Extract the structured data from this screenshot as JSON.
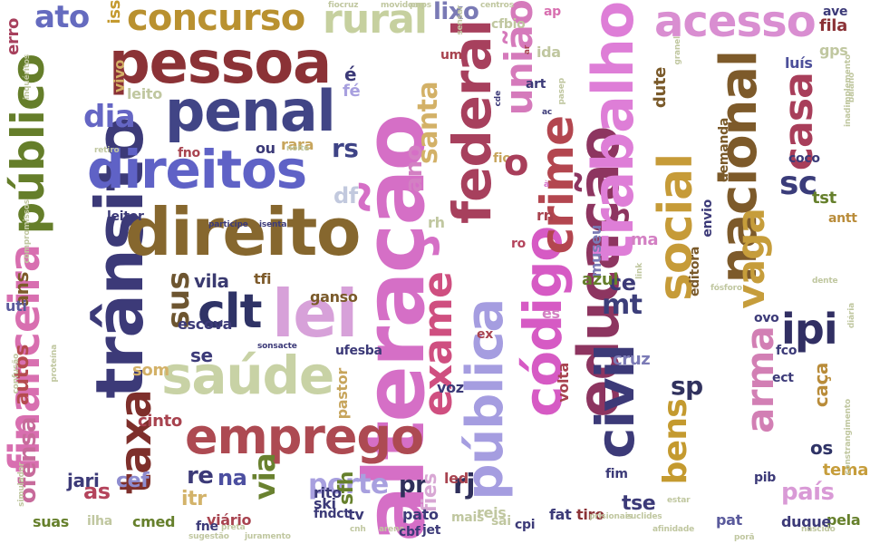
{
  "cloud": {
    "words": [
      {
        "text": "alteração",
        "color": "#d56fc6"
      },
      {
        "text": "trânsito",
        "color": "#3c3a78"
      },
      {
        "text": "direito",
        "color": "#86672e"
      },
      {
        "text": "pessoa",
        "color": "#8b3236"
      },
      {
        "text": "penal",
        "color": "#414586"
      },
      {
        "text": "direitos",
        "color": "#5f62c6"
      },
      {
        "text": "público",
        "color": "#657e2a"
      },
      {
        "text": "federal",
        "color": "#a7405d"
      },
      {
        "text": "financeira",
        "color": "#d86fb0"
      },
      {
        "text": "emprego",
        "color": "#ad4a52"
      },
      {
        "text": "saúde",
        "color": "#c8d2a5"
      },
      {
        "text": "lei",
        "color": "#d7a1d9"
      },
      {
        "text": "concurso",
        "color": "#b99130"
      },
      {
        "text": "acesso",
        "color": "#d98ed1"
      },
      {
        "text": "educação",
        "color": "#8d3560"
      },
      {
        "text": "trabalho",
        "color": "#de7ed7"
      },
      {
        "text": "código",
        "color": "#d65ac4"
      },
      {
        "text": "pública",
        "color": "#a59de0"
      },
      {
        "text": "social",
        "color": "#c69b38"
      },
      {
        "text": "nacional",
        "color": "#7d5a2a"
      },
      {
        "text": "civil",
        "color": "#3c3a78"
      },
      {
        "text": "crime",
        "color": "#b3464f"
      },
      {
        "text": "exame",
        "color": "#cf4f80"
      },
      {
        "text": "rural",
        "color": "#c6d09f"
      },
      {
        "text": "união",
        "color": "#d57abb"
      },
      {
        "text": "taxa",
        "color": "#7e2f2b"
      },
      {
        "text": "clt",
        "color": "#2f3366"
      },
      {
        "text": "ipi",
        "color": "#312f63"
      },
      {
        "text": "vaga",
        "color": "#c69d3b"
      },
      {
        "text": "casa",
        "color": "#a83e5a"
      },
      {
        "text": "arma",
        "color": "#d27fb4"
      },
      {
        "text": "bens",
        "color": "#c49a2f"
      },
      {
        "text": "sp",
        "color": "#31325e"
      },
      {
        "text": "sc",
        "color": "#3a3c7a"
      },
      {
        "text": "dia",
        "color": "#6566c4"
      },
      {
        "text": "ato",
        "color": "#656bbf"
      },
      {
        "text": "sus",
        "color": "#6d5530"
      },
      {
        "text": "porte",
        "color": "#a8a0df"
      },
      {
        "text": "via",
        "color": "#69812f"
      },
      {
        "text": "país",
        "color": "#d99ad6"
      },
      {
        "text": "rs",
        "color": "#3e4386"
      },
      {
        "text": "df",
        "color": "#c2c9de"
      },
      {
        "text": "mt",
        "color": "#3c3e7a"
      },
      {
        "text": "santa",
        "color": "#d3b167"
      },
      {
        "text": "ano",
        "color": "#d380c3"
      },
      {
        "text": "lixo",
        "color": "#7a7ab5"
      },
      {
        "text": "vila",
        "color": "#3a3a70"
      },
      {
        "text": "cef",
        "color": "#8e8ccf"
      },
      {
        "text": "ofensa",
        "color": "#c76b9b"
      },
      {
        "text": "autos",
        "color": "#b54b4f"
      },
      {
        "text": "ans",
        "color": "#7d5a2a"
      },
      {
        "text": "as",
        "color": "#b4445c"
      },
      {
        "text": "itr",
        "color": "#d3b36a"
      },
      {
        "text": "na",
        "color": "#4c4fa0"
      },
      {
        "text": "rj",
        "color": "#2f2f5b"
      },
      {
        "text": "pr",
        "color": "#2f2f5b"
      },
      {
        "text": "sfh",
        "color": "#66802c"
      },
      {
        "text": "fies",
        "color": "#d8a7d4"
      },
      {
        "text": "tse",
        "color": "#3c3a78"
      },
      {
        "text": "os",
        "color": "#2f3366"
      },
      {
        "text": "caça",
        "color": "#b98c3a"
      },
      {
        "text": "cruz",
        "color": "#7b7ab6"
      },
      {
        "text": "tema",
        "color": "#c69d3b"
      },
      {
        "text": "pela",
        "color": "#66802c"
      },
      {
        "text": "duque",
        "color": "#3c3a78"
      },
      {
        "text": "pat",
        "color": "#5a5a9c"
      },
      {
        "text": "tiro",
        "color": "#8b3236"
      },
      {
        "text": "fat",
        "color": "#3c3a78"
      },
      {
        "text": "museu",
        "color": "#7a7ab5"
      },
      {
        "text": "ce",
        "color": "#3c3a78"
      },
      {
        "text": "azul",
        "color": "#66802c"
      },
      {
        "text": "escova",
        "color": "#3c3a78"
      },
      {
        "text": "som",
        "color": "#d3b167"
      },
      {
        "text": "cinto",
        "color": "#a8434f"
      },
      {
        "text": "pastor",
        "color": "#c7a55c"
      },
      {
        "text": "ganso",
        "color": "#7a5a2a"
      },
      {
        "text": "leitor",
        "color": "#3c3a78"
      },
      {
        "text": "leito",
        "color": "#c0c7a0"
      },
      {
        "text": "vivo",
        "color": "#d3b167"
      },
      {
        "text": "iss",
        "color": "#c49a2f"
      },
      {
        "text": "erro",
        "color": "#a7405d"
      },
      {
        "text": "fila",
        "color": "#8b3236"
      },
      {
        "text": "gps",
        "color": "#c0c7a0"
      },
      {
        "text": "luís",
        "color": "#4c4f9a"
      },
      {
        "text": "ave",
        "color": "#3c3a78"
      },
      {
        "text": "tst",
        "color": "#66802c"
      },
      {
        "text": "antt",
        "color": "#b98c3a"
      },
      {
        "text": "coco",
        "color": "#3c3a78"
      },
      {
        "text": "dute",
        "color": "#7a5a2a"
      },
      {
        "text": "fco",
        "color": "#3c3a78"
      },
      {
        "text": "ect",
        "color": "#3c3a78"
      },
      {
        "text": "pib",
        "color": "#3c3a78"
      },
      {
        "text": "ovo",
        "color": "#3c3a78"
      },
      {
        "text": "rara",
        "color": "#c7a55c"
      },
      {
        "text": "ou",
        "color": "#3c3a78"
      },
      {
        "text": "fno",
        "color": "#a8434f"
      },
      {
        "text": "tfi",
        "color": "#7d5a2a"
      },
      {
        "text": "suas",
        "color": "#66802c"
      },
      {
        "text": "ilha",
        "color": "#c0c7a0"
      },
      {
        "text": "viário",
        "color": "#a8434f"
      },
      {
        "text": "fiocruz",
        "color": "#c0c7a0"
      },
      {
        "text": "movidos",
        "color": "#c0c7a0"
      },
      {
        "text": "pnps",
        "color": "#c0c7a0"
      },
      {
        "text": "centros",
        "color": "#c0c7a0"
      },
      {
        "text": "sensar",
        "color": "#c0c7a0"
      },
      {
        "text": "participe",
        "color": "#3c3a78"
      },
      {
        "text": "isenta",
        "color": "#3c3a78"
      },
      {
        "text": "inquéritos",
        "color": "#c0c7a0"
      },
      {
        "text": "confusão",
        "color": "#c0c7a0"
      },
      {
        "text": "compromissos",
        "color": "#c0c7a0"
      },
      {
        "text": "simulador",
        "color": "#c0c7a0"
      },
      {
        "text": "afinidade",
        "color": "#c0c7a0"
      },
      {
        "text": "nascido",
        "color": "#c0c7a0"
      },
      {
        "text": "euclides",
        "color": "#c0c7a0"
      },
      {
        "text": "prisionais",
        "color": "#c0c7a0"
      },
      {
        "text": "juramento",
        "color": "#c0c7a0"
      },
      {
        "text": "sugestão",
        "color": "#c0c7a0"
      },
      {
        "text": "proteína",
        "color": "#c0c7a0"
      },
      {
        "text": "inadimplemento",
        "color": "#c0c7a0"
      },
      {
        "text": "constrangimento",
        "color": "#c0c7a0"
      },
      {
        "text": "granel",
        "color": "#c0c7a0"
      },
      {
        "text": "baiano",
        "color": "#c0c7a0"
      },
      {
        "text": "retiro",
        "color": "#c0c7a0"
      },
      {
        "text": "noite",
        "color": "#c0c7a0"
      },
      {
        "text": "demanda",
        "color": "#7a5a2a"
      },
      {
        "text": "envio",
        "color": "#3c3a78"
      },
      {
        "text": "editora",
        "color": "#7a5a2a"
      },
      {
        "text": "pasep",
        "color": "#c0c7a0"
      },
      {
        "text": "link",
        "color": "#c0c7a0"
      },
      {
        "text": "estar",
        "color": "#c0c7a0"
      },
      {
        "text": "porã",
        "color": "#c0c7a0"
      },
      {
        "text": "dente",
        "color": "#c0c7a0"
      },
      {
        "text": "diária",
        "color": "#c0c7a0"
      },
      {
        "text": "fósforo",
        "color": "#c0c7a0"
      },
      {
        "text": "volta",
        "color": "#a8434f"
      },
      {
        "text": "cnh",
        "color": "#c0c7a0"
      },
      {
        "text": "arena",
        "color": "#c0c7a0"
      },
      {
        "text": "fndct",
        "color": "#3c3a78"
      },
      {
        "text": "preta",
        "color": "#c0c7a0"
      },
      {
        "text": "fne",
        "color": "#3c3a78"
      },
      {
        "text": "cmed",
        "color": "#66802c"
      },
      {
        "text": "jari",
        "color": "#3c3a78"
      },
      {
        "text": "uti",
        "color": "#5a5a9c"
      },
      {
        "text": "rito",
        "color": "#3c3a78"
      },
      {
        "text": "led",
        "color": "#a8434f"
      },
      {
        "text": "tv",
        "color": "#3c3a78"
      },
      {
        "text": "ski",
        "color": "#3c3a78"
      },
      {
        "text": "pato",
        "color": "#3c3a78"
      },
      {
        "text": "cbf",
        "color": "#3c3a78"
      },
      {
        "text": "jet",
        "color": "#3c3a78"
      },
      {
        "text": "reis",
        "color": "#c0c7a0"
      },
      {
        "text": "cpi",
        "color": "#3c3a78"
      },
      {
        "text": "sai",
        "color": "#c0c7a0"
      },
      {
        "text": "mais",
        "color": "#c0c7a0"
      },
      {
        "text": "ufesba",
        "color": "#3c3a78"
      },
      {
        "text": "sonsacte",
        "color": "#3c3a78"
      },
      {
        "text": "ex",
        "color": "#a8434f"
      },
      {
        "text": "fim",
        "color": "#3c3a78"
      },
      {
        "text": "voz",
        "color": "#3c3a78"
      },
      {
        "text": "cfbio",
        "color": "#c0c7a0"
      },
      {
        "text": "cde",
        "color": "#3c3a78"
      },
      {
        "text": "ac",
        "color": "#3c3a78"
      },
      {
        "text": "art",
        "color": "#3c3a78"
      },
      {
        "text": "um",
        "color": "#a8434f"
      },
      {
        "text": "ap",
        "color": "#d86fb0"
      },
      {
        "text": "ida",
        "color": "#c0c7a0"
      },
      {
        "text": "ar",
        "color": "#a8434f"
      },
      {
        "text": "fé",
        "color": "#a8a0df"
      },
      {
        "text": "é",
        "color": "#3c3a78"
      },
      {
        "text": "se",
        "color": "#3c3a78"
      },
      {
        "text": "ma",
        "color": "#d380c3"
      },
      {
        "text": "fio",
        "color": "#c7a55c"
      },
      {
        "text": "rn",
        "color": "#a8434f"
      },
      {
        "text": "ro",
        "color": "#b4445c"
      },
      {
        "text": "es",
        "color": "#d380c3"
      },
      {
        "text": "rh",
        "color": "#c0c7a0"
      },
      {
        "text": "à",
        "color": "#d56fc6"
      },
      {
        "text": "o",
        "color": "#a83e5a"
      },
      {
        "text": "re",
        "color": "#3c3a78"
      }
    ]
  }
}
